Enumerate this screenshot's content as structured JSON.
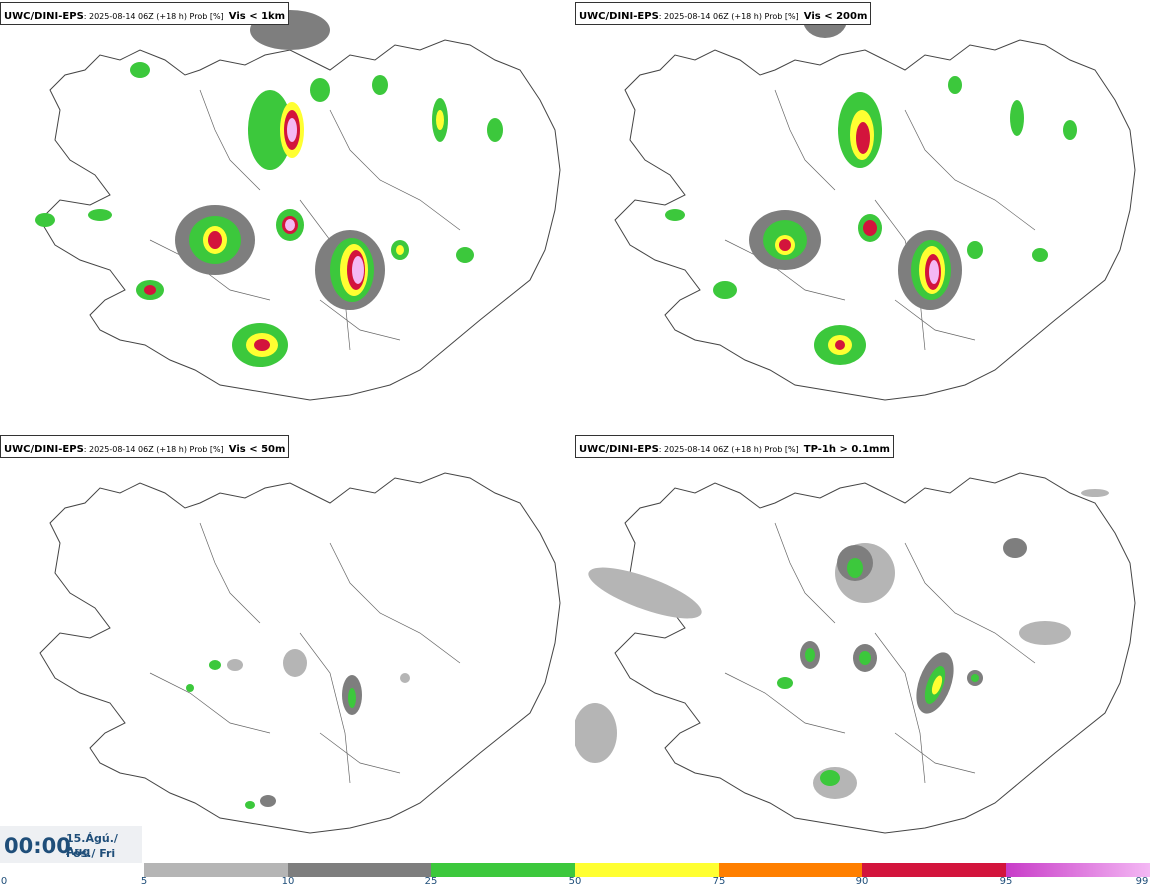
{
  "panels": [
    {
      "source": "UWC/DINI-EPS",
      "meta": ": 2025-08-14 06Z (+18 h) Prob [%]",
      "param": "Vis < 1km"
    },
    {
      "source": "UWC/DINI-EPS",
      "meta": ": 2025-08-14 06Z (+18 h) Prob [%]",
      "param": "Vis < 200m"
    },
    {
      "source": "UWC/DINI-EPS",
      "meta": ": 2025-08-14 06Z (+18 h) Prob [%]",
      "param": "Vis < 50m"
    },
    {
      "source": "UWC/DINI-EPS",
      "meta": ": 2025-08-14 06Z (+18 h) Prob [%]",
      "param": "TP-1h > 0.1mm"
    }
  ],
  "time": {
    "clock": "00:00",
    "date_line1": "15.Ágú./ Aug",
    "date_line2": "Fös./ Fri"
  },
  "legend": {
    "ticks": [
      "0",
      "5",
      "10",
      "25",
      "50",
      "75",
      "90",
      "95",
      "99"
    ],
    "colors": [
      "#ffffff",
      "#b5b5b5",
      "#7e7e7e",
      "#3cc83c",
      "#ffff32",
      "#ff7f00",
      "#d3143c",
      "#c83cc8",
      "#f4b8f4"
    ]
  }
}
